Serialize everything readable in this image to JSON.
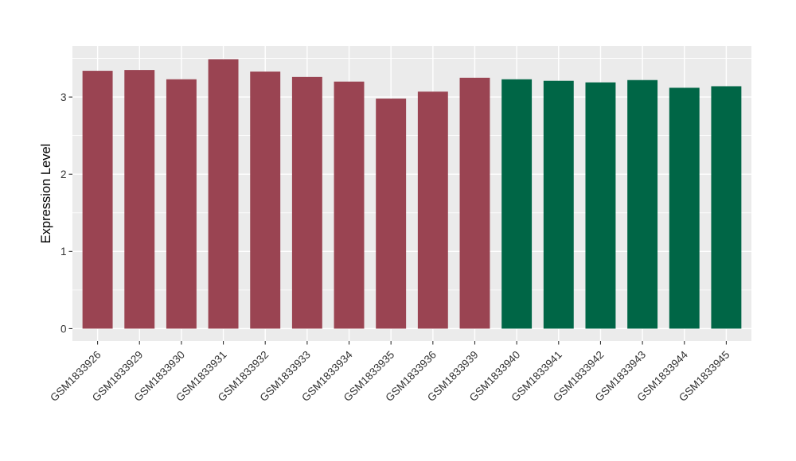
{
  "chart_data": {
    "type": "bar",
    "title": "",
    "xlabel": "",
    "ylabel": "Expression Level",
    "categories": [
      "GSM1833926",
      "GSM1833929",
      "GSM1833930",
      "GSM1833931",
      "GSM1833932",
      "GSM1833933",
      "GSM1833934",
      "GSM1833935",
      "GSM1833936",
      "GSM1833939",
      "GSM1833940",
      "GSM1833941",
      "GSM1833942",
      "GSM1833943",
      "GSM1833944",
      "GSM1833945"
    ],
    "values": [
      3.34,
      3.35,
      3.23,
      3.49,
      3.33,
      3.26,
      3.2,
      2.98,
      3.07,
      3.25,
      3.23,
      3.21,
      3.19,
      3.22,
      3.12,
      3.14
    ],
    "bar_colors": [
      "#9A4452",
      "#9A4452",
      "#9A4452",
      "#9A4452",
      "#9A4452",
      "#9A4452",
      "#9A4452",
      "#9A4452",
      "#9A4452",
      "#9A4452",
      "#006646",
      "#006646",
      "#006646",
      "#006646",
      "#006646",
      "#006646"
    ],
    "group_colors": {
      "group1_maroon": "#9A4452",
      "group2_green": "#006646"
    },
    "yticks": [
      0,
      1,
      2,
      3
    ],
    "yminor": [
      0.5,
      1.5,
      2.5,
      3.5
    ],
    "ylim": [
      -0.16,
      3.66
    ],
    "x_label_angle_deg": 45,
    "legend_position": "none",
    "panel_background": "#EBEBEB",
    "grid_color": "#FFFFFF",
    "axis_text_color": "#333333",
    "tick_mark_color": "#333333"
  }
}
